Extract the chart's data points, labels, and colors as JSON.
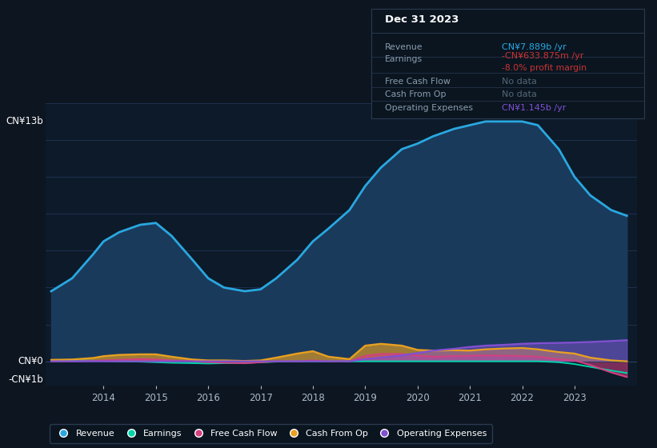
{
  "background_color": "#0d1520",
  "plot_bg_color": "#0d1a2a",
  "years": [
    2013.0,
    2013.4,
    2013.8,
    2014.0,
    2014.3,
    2014.7,
    2015.0,
    2015.3,
    2015.7,
    2016.0,
    2016.3,
    2016.7,
    2017.0,
    2017.3,
    2017.7,
    2018.0,
    2018.3,
    2018.7,
    2019.0,
    2019.3,
    2019.7,
    2020.0,
    2020.3,
    2020.7,
    2021.0,
    2021.3,
    2021.7,
    2022.0,
    2022.3,
    2022.7,
    2023.0,
    2023.3,
    2023.7,
    2024.0
  ],
  "revenue": [
    3.8,
    4.5,
    5.8,
    6.5,
    7.0,
    7.4,
    7.5,
    6.8,
    5.5,
    4.5,
    4.0,
    3.8,
    3.9,
    4.5,
    5.5,
    6.5,
    7.2,
    8.2,
    9.5,
    10.5,
    11.5,
    11.8,
    12.2,
    12.6,
    12.8,
    13.0,
    13.0,
    13.0,
    12.8,
    11.5,
    10.0,
    9.0,
    8.2,
    7.889
  ],
  "earnings": [
    0.05,
    0.05,
    0.03,
    0.02,
    0.0,
    -0.02,
    -0.05,
    -0.08,
    -0.1,
    -0.12,
    -0.1,
    -0.08,
    -0.05,
    -0.02,
    0.0,
    0.0,
    0.0,
    0.0,
    0.0,
    0.0,
    0.0,
    0.0,
    0.0,
    0.0,
    0.0,
    0.0,
    0.0,
    0.0,
    0.0,
    -0.05,
    -0.15,
    -0.3,
    -0.5,
    -0.634
  ],
  "free_cash_flow": [
    0.0,
    0.0,
    0.02,
    0.05,
    0.08,
    0.12,
    0.1,
    0.05,
    0.0,
    -0.05,
    -0.08,
    -0.1,
    -0.05,
    0.0,
    0.0,
    0.05,
    0.0,
    0.0,
    0.3,
    0.4,
    0.4,
    0.3,
    0.25,
    0.28,
    0.3,
    0.32,
    0.3,
    0.28,
    0.25,
    0.1,
    0.05,
    -0.2,
    -0.6,
    -0.85
  ],
  "cash_from_op": [
    0.08,
    0.1,
    0.18,
    0.28,
    0.35,
    0.38,
    0.38,
    0.25,
    0.1,
    0.05,
    0.05,
    0.02,
    0.05,
    0.2,
    0.42,
    0.55,
    0.25,
    0.12,
    0.85,
    0.95,
    0.85,
    0.62,
    0.58,
    0.6,
    0.58,
    0.65,
    0.7,
    0.72,
    0.65,
    0.5,
    0.42,
    0.2,
    0.05,
    0.0
  ],
  "operating_expenses": [
    0.0,
    0.0,
    0.0,
    0.0,
    0.0,
    0.0,
    0.0,
    0.0,
    0.0,
    0.0,
    0.0,
    0.0,
    0.0,
    0.0,
    0.0,
    0.0,
    0.0,
    0.0,
    0.12,
    0.2,
    0.32,
    0.45,
    0.58,
    0.68,
    0.78,
    0.85,
    0.9,
    0.95,
    0.98,
    1.0,
    1.02,
    1.05,
    1.1,
    1.145
  ],
  "revenue_color": "#29a8e0",
  "revenue_fill": "#1a3a5c",
  "earnings_color": "#00d4aa",
  "free_cash_flow_color": "#d44080",
  "cash_from_op_color": "#e8a020",
  "operating_expenses_color": "#8050d0",
  "ylim": [
    -1.3,
    14.0
  ],
  "ytop": 13.0,
  "yzero": 0.0,
  "ybot": -1.0,
  "xlabel_years": [
    2014,
    2015,
    2016,
    2017,
    2018,
    2019,
    2020,
    2021,
    2022,
    2023
  ],
  "grid_color": "#1e3050",
  "info_box_title": "Dec 31 2023",
  "info_rows": [
    {
      "label": "Revenue",
      "value": "CN¥7.889b /yr",
      "value_color": "#29a8e0",
      "sub": null,
      "sub_color": null
    },
    {
      "label": "Earnings",
      "value": "-CN¥633.875m /yr",
      "value_color": "#cc3333",
      "sub": "-8.0% profit margin",
      "sub_color": "#cc3333"
    },
    {
      "label": "Free Cash Flow",
      "value": "No data",
      "value_color": "#556677",
      "sub": null,
      "sub_color": null
    },
    {
      "label": "Cash From Op",
      "value": "No data",
      "value_color": "#556677",
      "sub": null,
      "sub_color": null
    },
    {
      "label": "Operating Expenses",
      "value": "CN¥1.145b /yr",
      "value_color": "#8050d0",
      "sub": null,
      "sub_color": null
    }
  ],
  "legend_items": [
    {
      "label": "Revenue",
      "color": "#29a8e0"
    },
    {
      "label": "Earnings",
      "color": "#00d4aa"
    },
    {
      "label": "Free Cash Flow",
      "color": "#d44080"
    },
    {
      "label": "Cash From Op",
      "color": "#e8a020"
    },
    {
      "label": "Operating Expenses",
      "color": "#8050d0"
    }
  ]
}
